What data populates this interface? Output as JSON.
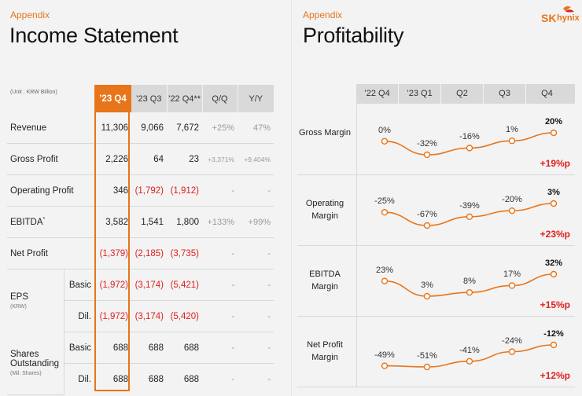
{
  "left": {
    "appendix": "Appendix",
    "title": "Income Statement",
    "unit": "(Unit : KRW Billion)",
    "columns": [
      "’23 Q4",
      "’23 Q3",
      "’22 Q4**",
      "Q/Q",
      "Y/Y"
    ],
    "rows": {
      "revenue": {
        "label": "Revenue",
        "v": [
          "11,306",
          "9,066",
          "7,672",
          "+25%",
          "47%"
        ]
      },
      "gross": {
        "label": "Gross Profit",
        "v": [
          "2,226",
          "64",
          "23",
          "+3,371%",
          "+9,404%"
        ]
      },
      "op": {
        "label": "Operating Profit",
        "v": [
          "346",
          "(1,792)",
          "(1,912)",
          "-",
          "-"
        ]
      },
      "ebitda": {
        "label": "EBITDA",
        "sup": "*",
        "v": [
          "3,582",
          "1,541",
          "1,800",
          "+133%",
          "+99%"
        ]
      },
      "net": {
        "label": "Net Profit",
        "v": [
          "(1,379)",
          "(2,185)",
          "(3,735)",
          "-",
          "-"
        ]
      },
      "eps": {
        "label": "EPS",
        "sublabel": "(KRW)",
        "basic": {
          "label": "Basic",
          "v": [
            "(1,972)",
            "(3,174)",
            "(5,421)",
            "-",
            "-"
          ]
        },
        "dil": {
          "label": "Dil.",
          "v": [
            "(1,972)",
            "(3,174)",
            "(5,420)",
            "-",
            "-"
          ]
        }
      },
      "shares": {
        "label": "Shares Outstanding",
        "sublabel": "(Mil. Shares)",
        "basic": {
          "label": "Basic",
          "v": [
            "688",
            "688",
            "688",
            "-",
            "-"
          ]
        },
        "dil": {
          "label": "Dil.",
          "v": [
            "688",
            "688",
            "688",
            "-",
            "-"
          ]
        }
      }
    }
  },
  "right": {
    "appendix": "Appendix",
    "title": "Profitability",
    "logo": {
      "sk": "SK",
      "hynix": "hynix"
    },
    "columns": [
      "’22 Q4",
      "’23 Q1",
      "Q2",
      "Q3",
      "Q4"
    ],
    "margins": [
      {
        "label": "Gross Margin",
        "values": [
          0,
          -32,
          -16,
          1,
          20
        ],
        "labels": [
          "0%",
          "-32%",
          "-16%",
          "1%",
          "20%"
        ],
        "delta": "+19%p"
      },
      {
        "label": "Operating Margin",
        "values": [
          -25,
          -67,
          -39,
          -20,
          3
        ],
        "labels": [
          "-25%",
          "-67%",
          "-39%",
          "-20%",
          "3%"
        ],
        "delta": "+23%p"
      },
      {
        "label": "EBITDA Margin",
        "values": [
          23,
          3,
          8,
          17,
          32
        ],
        "labels": [
          "23%",
          "3%",
          "8%",
          "17%",
          "32%"
        ],
        "delta": "+15%p"
      },
      {
        "label": "Net Profit Margin",
        "values": [
          -49,
          -51,
          -41,
          -24,
          -12
        ],
        "labels": [
          "-49%",
          "-51%",
          "-41%",
          "-24%",
          "-12%"
        ],
        "delta": "+12%p"
      }
    ],
    "accent": "#e8751a",
    "negative_color": "#e02020"
  }
}
